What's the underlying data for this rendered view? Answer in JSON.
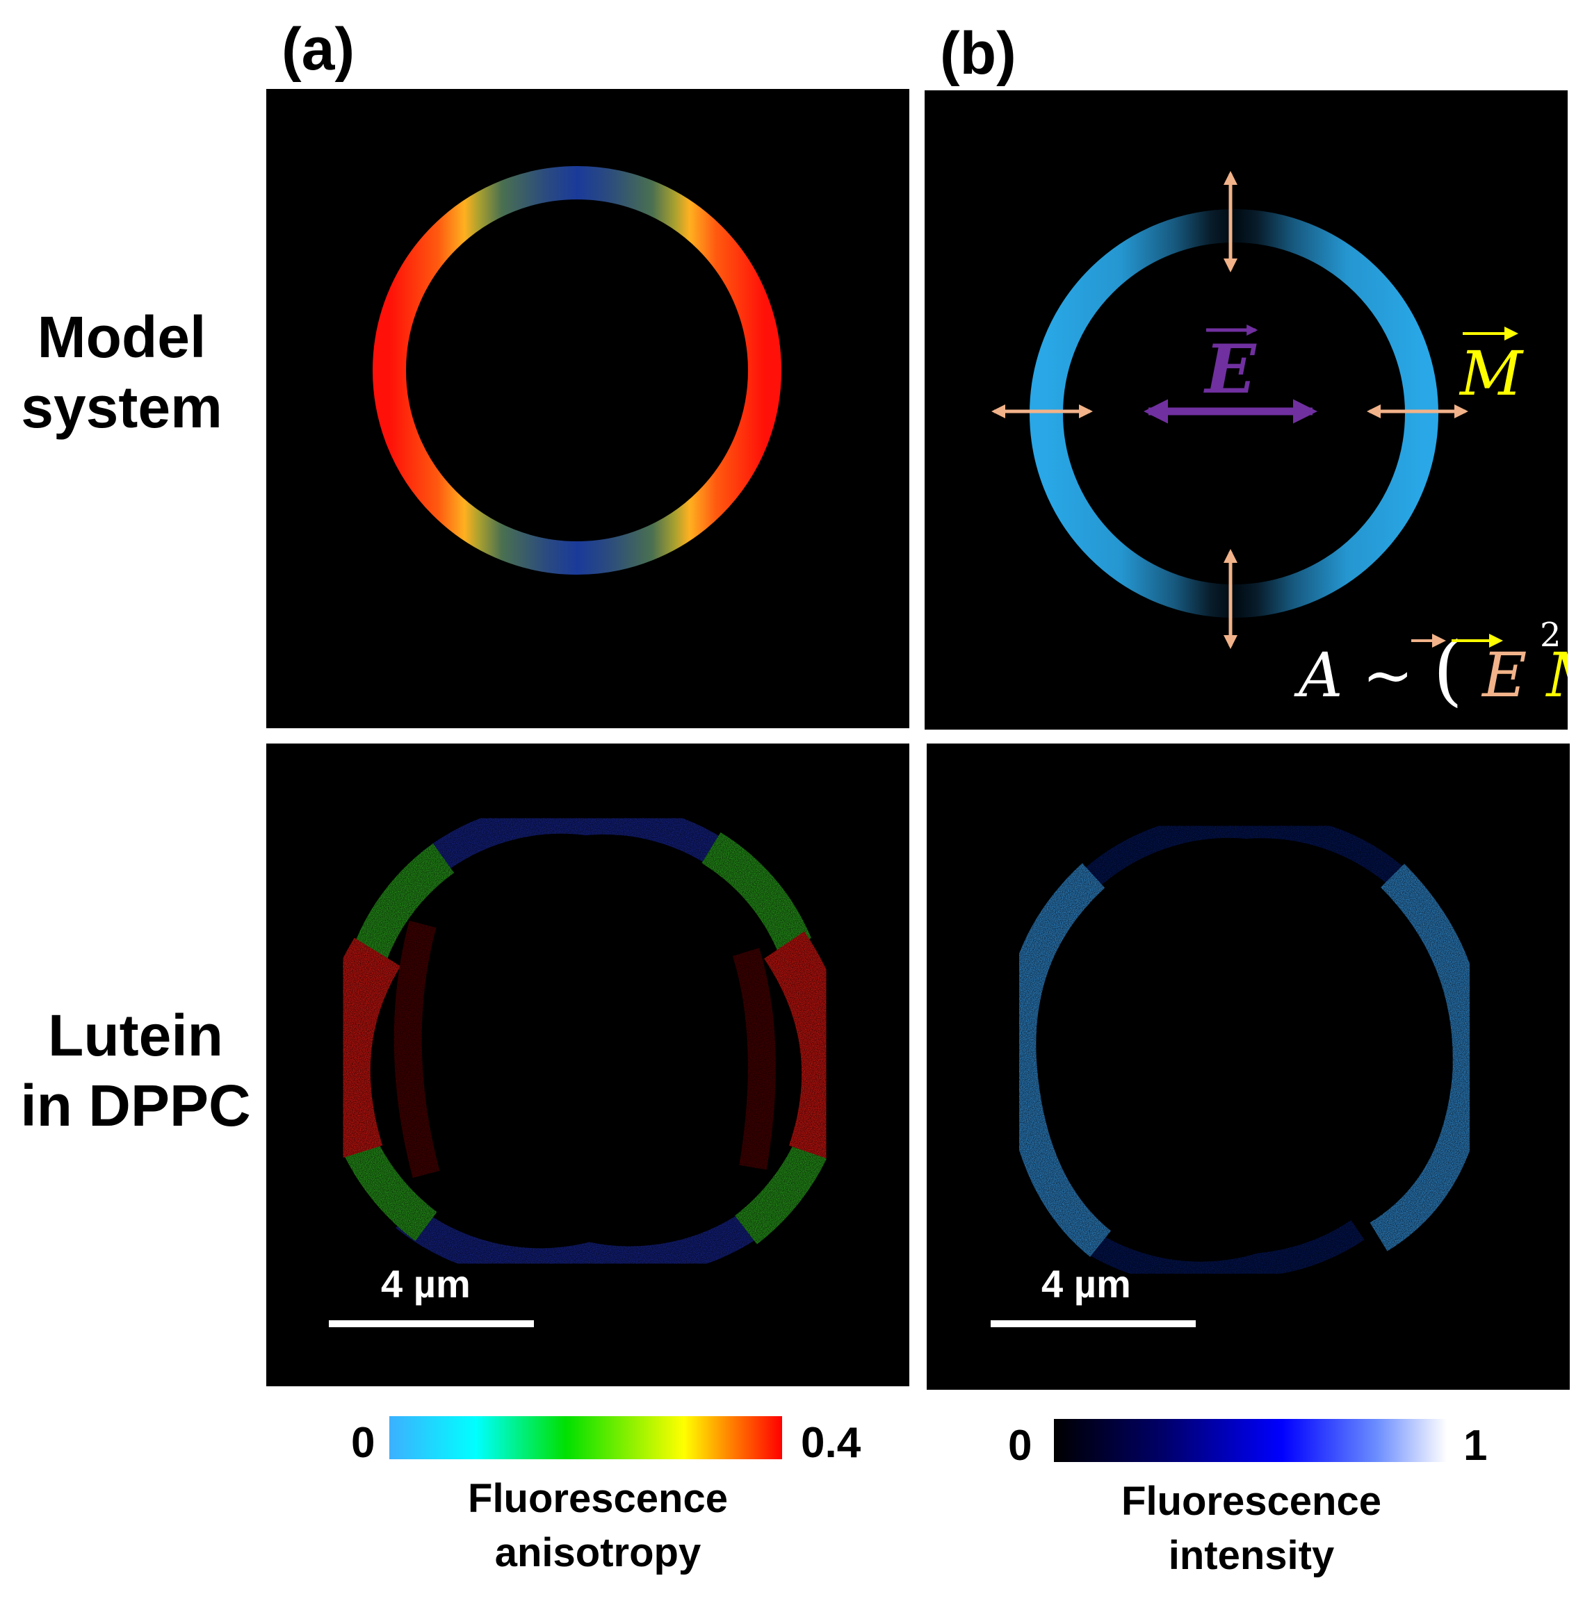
{
  "panels": {
    "a": {
      "label": "(a)"
    },
    "b": {
      "label": "(b)"
    }
  },
  "rows": {
    "top": {
      "line1": "Model",
      "line2": "system"
    },
    "bottom": {
      "line1": "Lutein",
      "line2": "in DPPC"
    }
  },
  "model_b": {
    "vector_e": "E",
    "vector_m": "M",
    "formula_a": "A",
    "formula_tilde": "~",
    "formula_open": "(",
    "formula_e": "E",
    "formula_m": "M",
    "formula_close": ")",
    "formula_exp": "2"
  },
  "scale_bars": {
    "a": {
      "label": "4 µm"
    },
    "b": {
      "label": "4 µm"
    }
  },
  "colorbars": {
    "anisotropy": {
      "min": "0",
      "max": "0.4",
      "title_line1": "Fluorescence",
      "title_line2": "anisotropy",
      "gradient": [
        "#3cb0ff",
        "#00ffff",
        "#00e000",
        "#ffff00",
        "#ff8000",
        "#ff0000"
      ]
    },
    "intensity": {
      "min": "0",
      "max": "1",
      "title_line1": "Fluorescence",
      "title_line2": "intensity",
      "gradient": [
        "#000000",
        "#00006a",
        "#0000ff",
        "#6a8cff",
        "#ffffff"
      ]
    }
  },
  "colors": {
    "ring_blue": "#29a7e6",
    "arrow_peach": "#f2b38a",
    "vector_purple": "#7030a0",
    "vector_yellow": "#ffff00",
    "anisotropy_high": "#ff1a10",
    "anisotropy_low": "#1a2a9a"
  }
}
